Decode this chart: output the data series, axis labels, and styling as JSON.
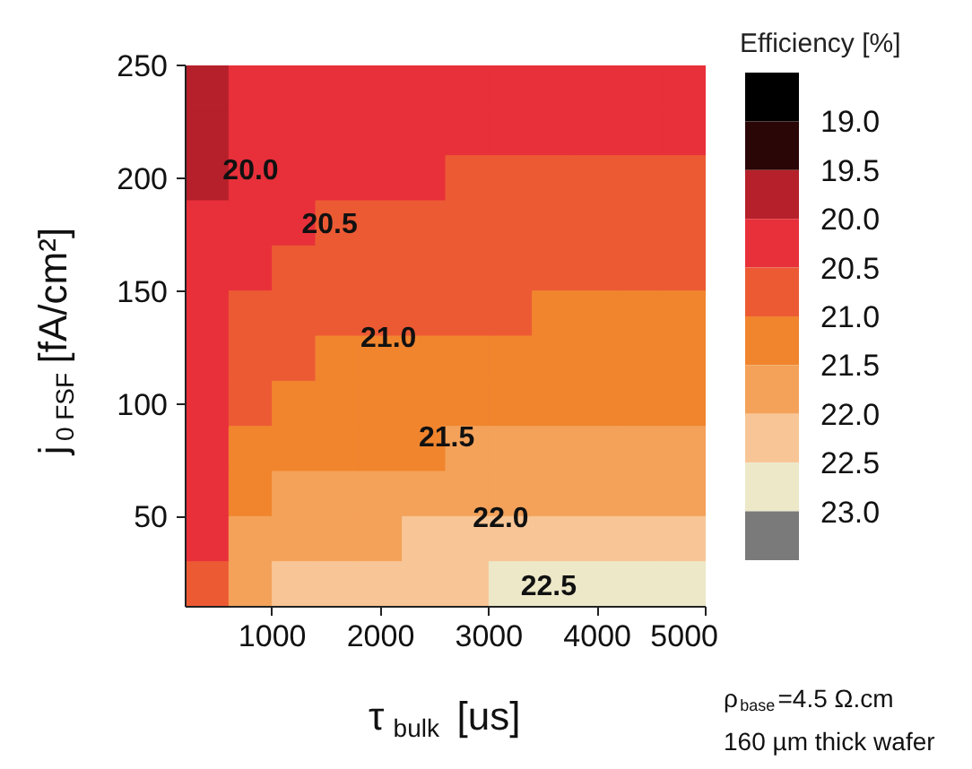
{
  "chart_data": {
    "type": "heatmap",
    "xlabel": "τ$_{bulk}$ [us]",
    "ylabel": "j$_{0 FSF}$ [fA/cm²]",
    "clabel": "Efficiency [%]",
    "xlim": [
      200,
      5000
    ],
    "xticks": [
      1000,
      2000,
      3000,
      4000,
      5000
    ],
    "ylim": [
      10,
      250
    ],
    "yticks": [
      50,
      100,
      150,
      200,
      250
    ],
    "clim": [
      18.5,
      23.5
    ],
    "cticks": [
      {
        "value": 19,
        "label": "19.0"
      },
      19.5,
      {
        "value": 20,
        "label": "20.0"
      },
      20.5,
      {
        "value": 21,
        "label": "21.0"
      },
      21.5,
      {
        "value": 22,
        "label": "22.0"
      },
      22.5,
      {
        "value": 23,
        "label": "23.0"
      }
    ],
    "colors": [
      "#000000",
      "#2a0606",
      "#b5202a",
      "#e8303a",
      "#ec5a34",
      "#f0852e",
      "#f4a25a",
      "#f8c696",
      "#ece8c8",
      "#7a7a7a"
    ],
    "cells": [
      [
        19.85,
        20.02,
        20.18,
        20.27,
        20.3,
        20.32,
        20.34,
        20.36,
        20.37,
        20.38,
        20.39,
        20.4
      ],
      [
        19.9,
        20.12,
        20.27,
        20.35,
        20.38,
        20.4,
        20.42,
        20.44,
        20.45,
        20.46,
        20.47,
        20.48
      ],
      [
        19.95,
        20.24,
        20.36,
        20.44,
        20.47,
        20.49,
        20.52,
        20.54,
        20.55,
        20.56,
        20.58,
        20.59
      ],
      [
        20.0,
        20.35,
        20.46,
        20.55,
        20.6,
        20.63,
        20.66,
        20.68,
        20.7,
        20.71,
        20.72,
        20.74
      ],
      [
        20.07,
        20.48,
        20.62,
        20.7,
        20.75,
        20.78,
        20.8,
        20.82,
        20.85,
        20.86,
        20.88,
        20.9
      ],
      [
        20.15,
        20.63,
        20.79,
        20.85,
        20.88,
        20.92,
        20.95,
        20.97,
        21.0,
        21.01,
        21.03,
        21.05
      ],
      [
        20.2,
        20.8,
        20.96,
        21.02,
        21.07,
        21.1,
        21.14,
        21.17,
        21.2,
        21.22,
        21.24,
        21.26
      ],
      [
        20.3,
        20.97,
        21.14,
        21.22,
        21.27,
        21.3,
        21.33,
        21.36,
        21.39,
        21.41,
        21.43,
        21.45
      ],
      [
        20.35,
        21.18,
        21.33,
        21.41,
        21.45,
        21.48,
        21.52,
        21.55,
        21.58,
        21.6,
        21.62,
        21.64
      ],
      [
        20.4,
        21.4,
        21.54,
        21.64,
        21.7,
        21.74,
        21.8,
        21.83,
        21.86,
        21.88,
        21.9,
        21.92
      ],
      [
        20.47,
        21.62,
        21.8,
        21.93,
        21.98,
        22.05,
        22.08,
        22.12,
        22.15,
        22.17,
        22.19,
        22.2
      ],
      [
        20.55,
        21.9,
        22.08,
        22.4,
        22.42,
        22.45,
        22.48,
        22.52,
        22.54,
        22.55,
        22.57,
        22.6
      ]
    ],
    "annotations": [
      "20.0",
      "20.5",
      "21.0",
      "21.5",
      "22.0",
      "22.5",
      "ρ$_{base}$=4.5 Ω.cm",
      "160 µm thick wafer"
    ]
  }
}
